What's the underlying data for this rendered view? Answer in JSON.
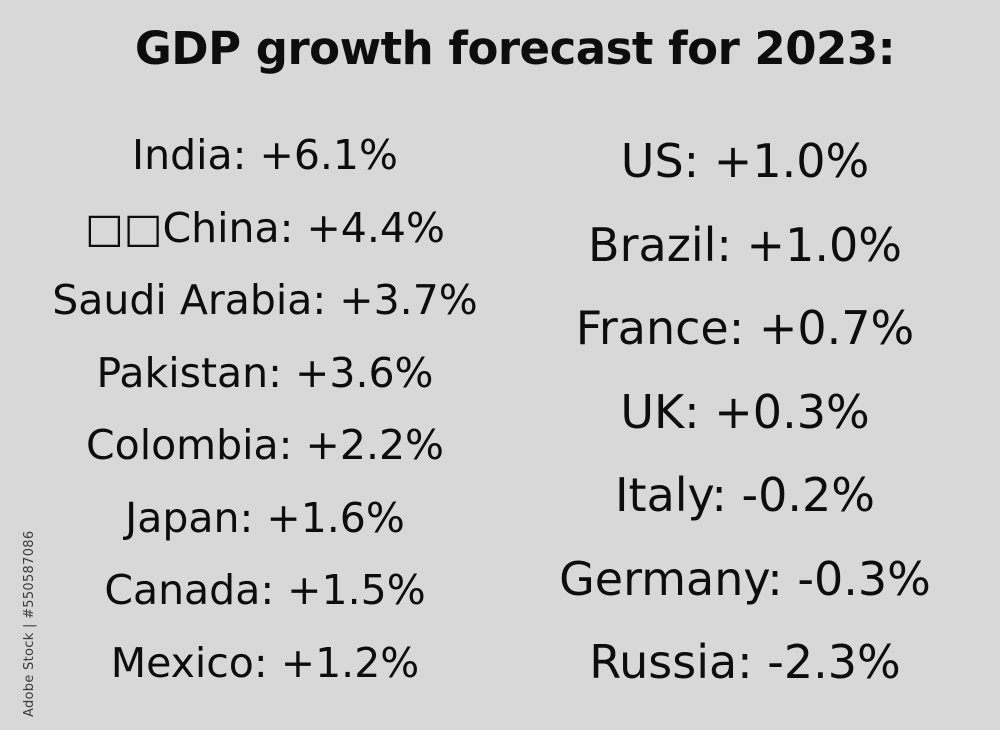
{
  "title": "GDP growth forecast for 2023:",
  "left_column": [
    "India: +6.1%",
    "□□China: +4.4%",
    "Saudi Arabia: +3.7%",
    "Pakistan: +3.6%",
    "Colombia: +2.2%",
    "Japan: +1.6%",
    "Canada: +1.5%",
    "Mexico: +1.2%"
  ],
  "right_column": [
    "US: +1.0%",
    "Brazil: +1.0%",
    "France: +0.7%",
    "UK: +0.3%",
    "Italy: -0.2%",
    "Germany: -0.3%",
    "Russia: -2.3%"
  ],
  "watermark": "Adobe Stock | #550587086",
  "colors": {
    "background": "#d8d8d8",
    "text": "#0d0d0d"
  }
}
